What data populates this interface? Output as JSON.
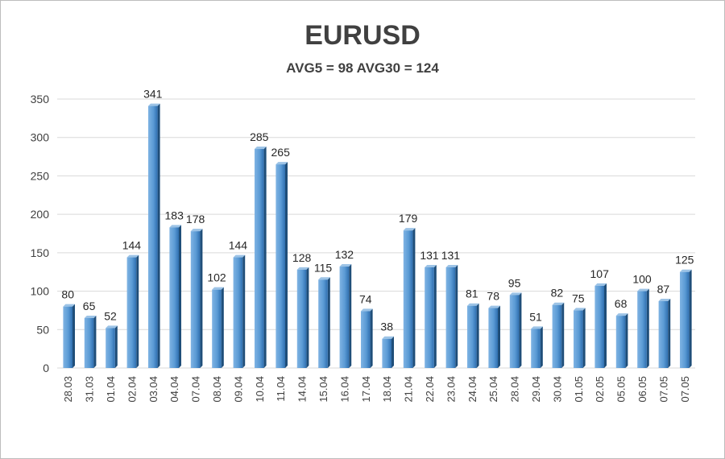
{
  "chart_data": {
    "type": "bar",
    "title": "EURUSD",
    "subtitle": "AVG5 = 98 AVG30 = 124",
    "xlabel": "",
    "ylabel": "",
    "ylim": [
      0,
      350
    ],
    "yticks": [
      0,
      50,
      100,
      150,
      200,
      250,
      300,
      350
    ],
    "grid": true,
    "categories": [
      "28.03",
      "31.03",
      "01.04",
      "02.04",
      "03.04",
      "04.04",
      "07.04",
      "08.04",
      "09.04",
      "10.04",
      "11.04",
      "14.04",
      "15.04",
      "16.04",
      "17.04",
      "18.04",
      "21.04",
      "22.04",
      "23.04",
      "24.04",
      "25.04",
      "28.04",
      "29.04",
      "30.04",
      "01.05",
      "02.05",
      "05.05",
      "06.05",
      "07.05",
      "07.05"
    ],
    "values": [
      80,
      65,
      52,
      144,
      341,
      183,
      178,
      102,
      144,
      285,
      265,
      128,
      115,
      132,
      74,
      38,
      179,
      131,
      131,
      81,
      78,
      95,
      51,
      82,
      75,
      107,
      68,
      100,
      87,
      125
    ],
    "bar_color": "#5b9bd5"
  }
}
